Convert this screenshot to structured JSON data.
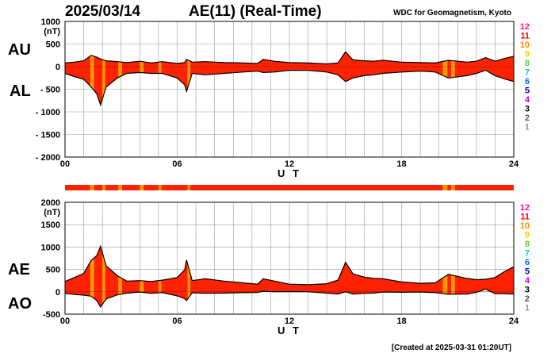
{
  "header": {
    "date": "2025/03/14",
    "title": "AE(11) (Real-Time)",
    "organization": "WDC for Geomagnetism, Kyoto"
  },
  "footer": {
    "created": "[Created at 2025-03-31 01:20UT]"
  },
  "panels": {
    "top": {
      "upper_label": "AU",
      "lower_label": "AL"
    },
    "bottom": {
      "upper_label": "AE",
      "lower_label": "AO"
    }
  },
  "station_scale": {
    "labels": [
      "12",
      "11",
      "10",
      "9",
      "8",
      "7",
      "6",
      "5",
      "4",
      "3",
      "2",
      "1"
    ],
    "colors": [
      "#ff1493",
      "#ff0000",
      "#ff8c00",
      "#ffcc00",
      "#66cc33",
      "#00cccc",
      "#0066ff",
      "#0000cc",
      "#cc00cc",
      "#000000",
      "#555555",
      "#999999"
    ]
  },
  "colors": {
    "fill": "#ff2200",
    "alt_fill": "#ff9900",
    "line": "#000000",
    "grid": "#999999"
  },
  "chart_data": [
    {
      "type": "area",
      "ylabel": "(nT)",
      "xlabel": "U T",
      "xlim": [
        0,
        24
      ],
      "ylim": [
        -2000,
        1000
      ],
      "yticks": [
        1000,
        500,
        0,
        -500,
        -1000,
        -1500,
        -2000
      ],
      "ytick_labels": [
        "1000",
        "500",
        "0",
        "- 500",
        "- 1000",
        "- 1500",
        "- 2000"
      ],
      "xticks": [
        0,
        6,
        12,
        18,
        24
      ],
      "xtick_labels": [
        "00",
        "06",
        "12",
        "18",
        "24"
      ],
      "grid": true,
      "x": [
        0,
        0.5,
        1.0,
        1.4,
        1.7,
        1.9,
        2.2,
        2.8,
        3.3,
        4.0,
        4.6,
        5.2,
        6.0,
        6.4,
        6.5,
        6.8,
        7.5,
        8.5,
        9.5,
        10.3,
        10.6,
        11.2,
        12.0,
        13.0,
        14.0,
        14.6,
        15.0,
        15.4,
        16.0,
        16.5,
        17.0,
        18.0,
        19.0,
        19.8,
        20.5,
        21.5,
        22.0,
        22.5,
        23.0,
        23.5,
        24
      ],
      "series": [
        {
          "name": "AU",
          "values": [
            80,
            100,
            130,
            250,
            210,
            170,
            130,
            110,
            90,
            120,
            80,
            110,
            70,
            90,
            160,
            100,
            110,
            90,
            80,
            70,
            160,
            120,
            90,
            80,
            60,
            80,
            330,
            150,
            130,
            120,
            140,
            100,
            90,
            80,
            140,
            100,
            120,
            200,
            120,
            180,
            230
          ]
        },
        {
          "name": "AL",
          "values": [
            -150,
            -220,
            -280,
            -450,
            -600,
            -850,
            -450,
            -250,
            -150,
            -130,
            -150,
            -150,
            -250,
            -400,
            -550,
            -150,
            -180,
            -150,
            -120,
            -100,
            -130,
            -120,
            -80,
            -80,
            -120,
            -180,
            -330,
            -250,
            -200,
            -180,
            -150,
            -120,
            -100,
            -120,
            -250,
            -200,
            -150,
            -80,
            -200,
            -270,
            -330
          ]
        }
      ],
      "station_count_bands": [
        {
          "start": 1.35,
          "end": 1.55
        },
        {
          "start": 2.0,
          "end": 2.15
        },
        {
          "start": 2.85,
          "end": 3.05
        },
        {
          "start": 4.0,
          "end": 4.2
        },
        {
          "start": 5.0,
          "end": 5.15
        },
        {
          "start": 6.55,
          "end": 6.7
        },
        {
          "start": 20.2,
          "end": 20.45
        },
        {
          "start": 20.65,
          "end": 20.85
        }
      ]
    },
    {
      "type": "area",
      "ylabel": "(nT)",
      "xlabel": "U T",
      "xlim": [
        0,
        24
      ],
      "ylim": [
        -500,
        2000
      ],
      "yticks": [
        2000,
        1500,
        1000,
        500,
        0,
        -500
      ],
      "ytick_labels": [
        "2000",
        "1500",
        "1000",
        "500",
        "0",
        "-500"
      ],
      "xticks": [
        0,
        6,
        12,
        18,
        24
      ],
      "xtick_labels": [
        "00",
        "06",
        "12",
        "18",
        "24"
      ],
      "grid": true,
      "x": [
        0,
        0.5,
        1.0,
        1.4,
        1.7,
        1.9,
        2.2,
        2.8,
        3.3,
        4.0,
        4.6,
        5.2,
        6.0,
        6.4,
        6.5,
        6.8,
        7.5,
        8.5,
        9.5,
        10.3,
        10.6,
        11.2,
        12.0,
        13.0,
        14.0,
        14.6,
        15.0,
        15.4,
        16.0,
        16.5,
        17.0,
        18.0,
        19.0,
        19.8,
        20.5,
        21.5,
        22.0,
        22.5,
        23.0,
        23.5,
        24
      ],
      "series": [
        {
          "name": "AE",
          "values": [
            230,
            320,
            410,
            700,
            810,
            1020,
            580,
            360,
            240,
            250,
            230,
            260,
            320,
            490,
            710,
            250,
            290,
            240,
            200,
            170,
            290,
            240,
            170,
            160,
            180,
            260,
            660,
            400,
            330,
            300,
            290,
            220,
            190,
            200,
            390,
            300,
            270,
            280,
            320,
            450,
            560
          ]
        },
        {
          "name": "AO",
          "values": [
            -35,
            -60,
            -75,
            -100,
            -195,
            -340,
            -160,
            -70,
            -30,
            -5,
            -35,
            -20,
            -90,
            -155,
            -195,
            -25,
            -35,
            -30,
            -20,
            -15,
            15,
            0,
            5,
            0,
            -30,
            -50,
            0,
            -50,
            -35,
            -30,
            -5,
            -10,
            -5,
            -20,
            -55,
            -50,
            -15,
            60,
            -40,
            -45,
            -50
          ]
        }
      ],
      "station_count_bands": [
        {
          "start": 1.35,
          "end": 1.55
        },
        {
          "start": 2.0,
          "end": 2.15
        },
        {
          "start": 2.85,
          "end": 3.05
        },
        {
          "start": 4.0,
          "end": 4.2
        },
        {
          "start": 5.0,
          "end": 5.15
        },
        {
          "start": 6.55,
          "end": 6.7
        },
        {
          "start": 20.2,
          "end": 20.45
        },
        {
          "start": 20.65,
          "end": 20.85
        }
      ]
    }
  ]
}
